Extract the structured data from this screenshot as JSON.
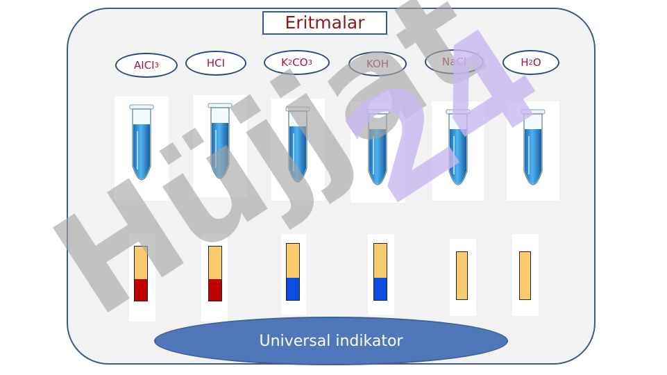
{
  "title": "Eritmalar",
  "bottom_label": "Universal indikator",
  "solutions": [
    {
      "main": "AICI ",
      "sub": "3",
      "tail": ""
    },
    {
      "main": "HCI",
      "sub": "",
      "tail": ""
    },
    {
      "main": "K",
      "sub": "2",
      "tail": "CO",
      "sub2": "3"
    },
    {
      "main": "KOH",
      "sub": "",
      "tail": ""
    },
    {
      "main": "NaCI",
      "sub": "",
      "tail": ""
    },
    {
      "main": "H",
      "sub": "2",
      "tail": "O"
    }
  ],
  "strip_results": [
    "red",
    "red",
    "blue",
    "blue",
    "none",
    "none"
  ],
  "colors": {
    "strip_base": "#f8cc6c",
    "red": "#c00000",
    "blue": "#0a4fe0",
    "liquid": "#4fb3f0",
    "frame": "#3d5a80",
    "title_text": "#8b1a1a",
    "label_text": "#a0163a",
    "indicator_fill": "#5077b9"
  },
  "watermark_text": "Hüjjat24"
}
